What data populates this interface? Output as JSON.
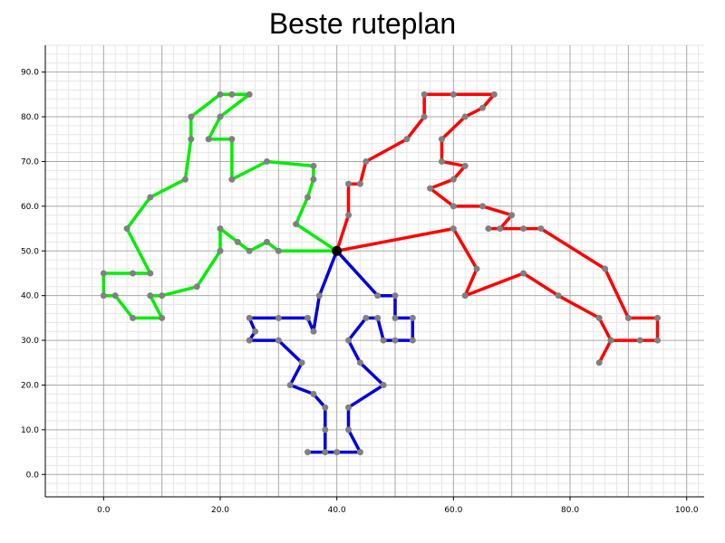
{
  "chart_data": {
    "type": "line",
    "title": "Beste ruteplan",
    "xlabel": "",
    "ylabel": "",
    "xlim": [
      -10,
      103
    ],
    "ylim": [
      -5,
      96
    ],
    "x_ticks": [
      0,
      20,
      40,
      60,
      80,
      100
    ],
    "y_ticks": [
      0,
      10,
      20,
      30,
      40,
      50,
      60,
      70,
      80,
      90
    ],
    "x_tick_labels": [
      "0.0",
      "20.0",
      "40.0",
      "60.0",
      "80.0",
      "100.0"
    ],
    "y_tick_labels": [
      "0.0",
      "10.0",
      "20.0",
      "30.0",
      "40.0",
      "50.0",
      "60.0",
      "70.0",
      "80.0",
      "90.0"
    ],
    "grid": true,
    "depot": [
      40,
      50
    ],
    "depot_color": "#000000",
    "stop_color": "#808080",
    "series": [
      {
        "color": "#00ee00",
        "points": [
          [
            40,
            50
          ],
          [
            33,
            56
          ],
          [
            35,
            62
          ],
          [
            36,
            66
          ],
          [
            36,
            69
          ],
          [
            28,
            70
          ],
          [
            22,
            66
          ],
          [
            22,
            75
          ],
          [
            18,
            75
          ],
          [
            20,
            80
          ],
          [
            25,
            85
          ],
          [
            22,
            85
          ],
          [
            20,
            85
          ],
          [
            15,
            80
          ],
          [
            15,
            75
          ],
          [
            14,
            66
          ],
          [
            8,
            62
          ],
          [
            4,
            55
          ],
          [
            8,
            45
          ],
          [
            5,
            45
          ],
          [
            0,
            45
          ],
          [
            0,
            40
          ],
          [
            2,
            40
          ],
          [
            5,
            35
          ],
          [
            10,
            35
          ],
          [
            8,
            40
          ],
          [
            10,
            40
          ],
          [
            16,
            42
          ],
          [
            20,
            50
          ],
          [
            20,
            55
          ],
          [
            23,
            52
          ],
          [
            25,
            50
          ],
          [
            28,
            52
          ],
          [
            30,
            50
          ],
          [
            40,
            50
          ]
        ]
      },
      {
        "color": "#ff0000",
        "points": [
          [
            40,
            50
          ],
          [
            42,
            58
          ],
          [
            42,
            65
          ],
          [
            44,
            65
          ],
          [
            45,
            70
          ],
          [
            52,
            75
          ],
          [
            55,
            80
          ],
          [
            55,
            85
          ],
          [
            60,
            85
          ],
          [
            67,
            85
          ],
          [
            65,
            82
          ],
          [
            62,
            80
          ],
          [
            58,
            75
          ],
          [
            58,
            70
          ],
          [
            62,
            69
          ],
          [
            60,
            66
          ],
          [
            56,
            64
          ],
          [
            60,
            60
          ],
          [
            65,
            60
          ],
          [
            70,
            58
          ],
          [
            68,
            55
          ],
          [
            66,
            55
          ],
          [
            72,
            55
          ],
          [
            75,
            55
          ],
          [
            86,
            46
          ],
          [
            90,
            35
          ],
          [
            95,
            35
          ],
          [
            95,
            30
          ],
          [
            92,
            30
          ],
          [
            87,
            30
          ],
          [
            85,
            25
          ],
          [
            87,
            30
          ],
          [
            85,
            35
          ],
          [
            78,
            40
          ],
          [
            72,
            45
          ],
          [
            62,
            40
          ],
          [
            64,
            46
          ],
          [
            60,
            55
          ],
          [
            40,
            50
          ]
        ]
      },
      {
        "color": "#0000dd",
        "points": [
          [
            40,
            50
          ],
          [
            37,
            40
          ],
          [
            36,
            32
          ],
          [
            35,
            35
          ],
          [
            30,
            35
          ],
          [
            25,
            35
          ],
          [
            26,
            32
          ],
          [
            25,
            30
          ],
          [
            30,
            30
          ],
          [
            34,
            25
          ],
          [
            32,
            20
          ],
          [
            36,
            18
          ],
          [
            38,
            15
          ],
          [
            38,
            10
          ],
          [
            38,
            5
          ],
          [
            35,
            5
          ],
          [
            40,
            5
          ],
          [
            44,
            5
          ],
          [
            42,
            10
          ],
          [
            42,
            15
          ],
          [
            48,
            20
          ],
          [
            44,
            25
          ],
          [
            42,
            30
          ],
          [
            45,
            35
          ],
          [
            47,
            35
          ],
          [
            48,
            30
          ],
          [
            50,
            30
          ],
          [
            53,
            30
          ],
          [
            53,
            35
          ],
          [
            50,
            35
          ],
          [
            50,
            40
          ],
          [
            47,
            40
          ],
          [
            40,
            50
          ]
        ]
      }
    ]
  }
}
